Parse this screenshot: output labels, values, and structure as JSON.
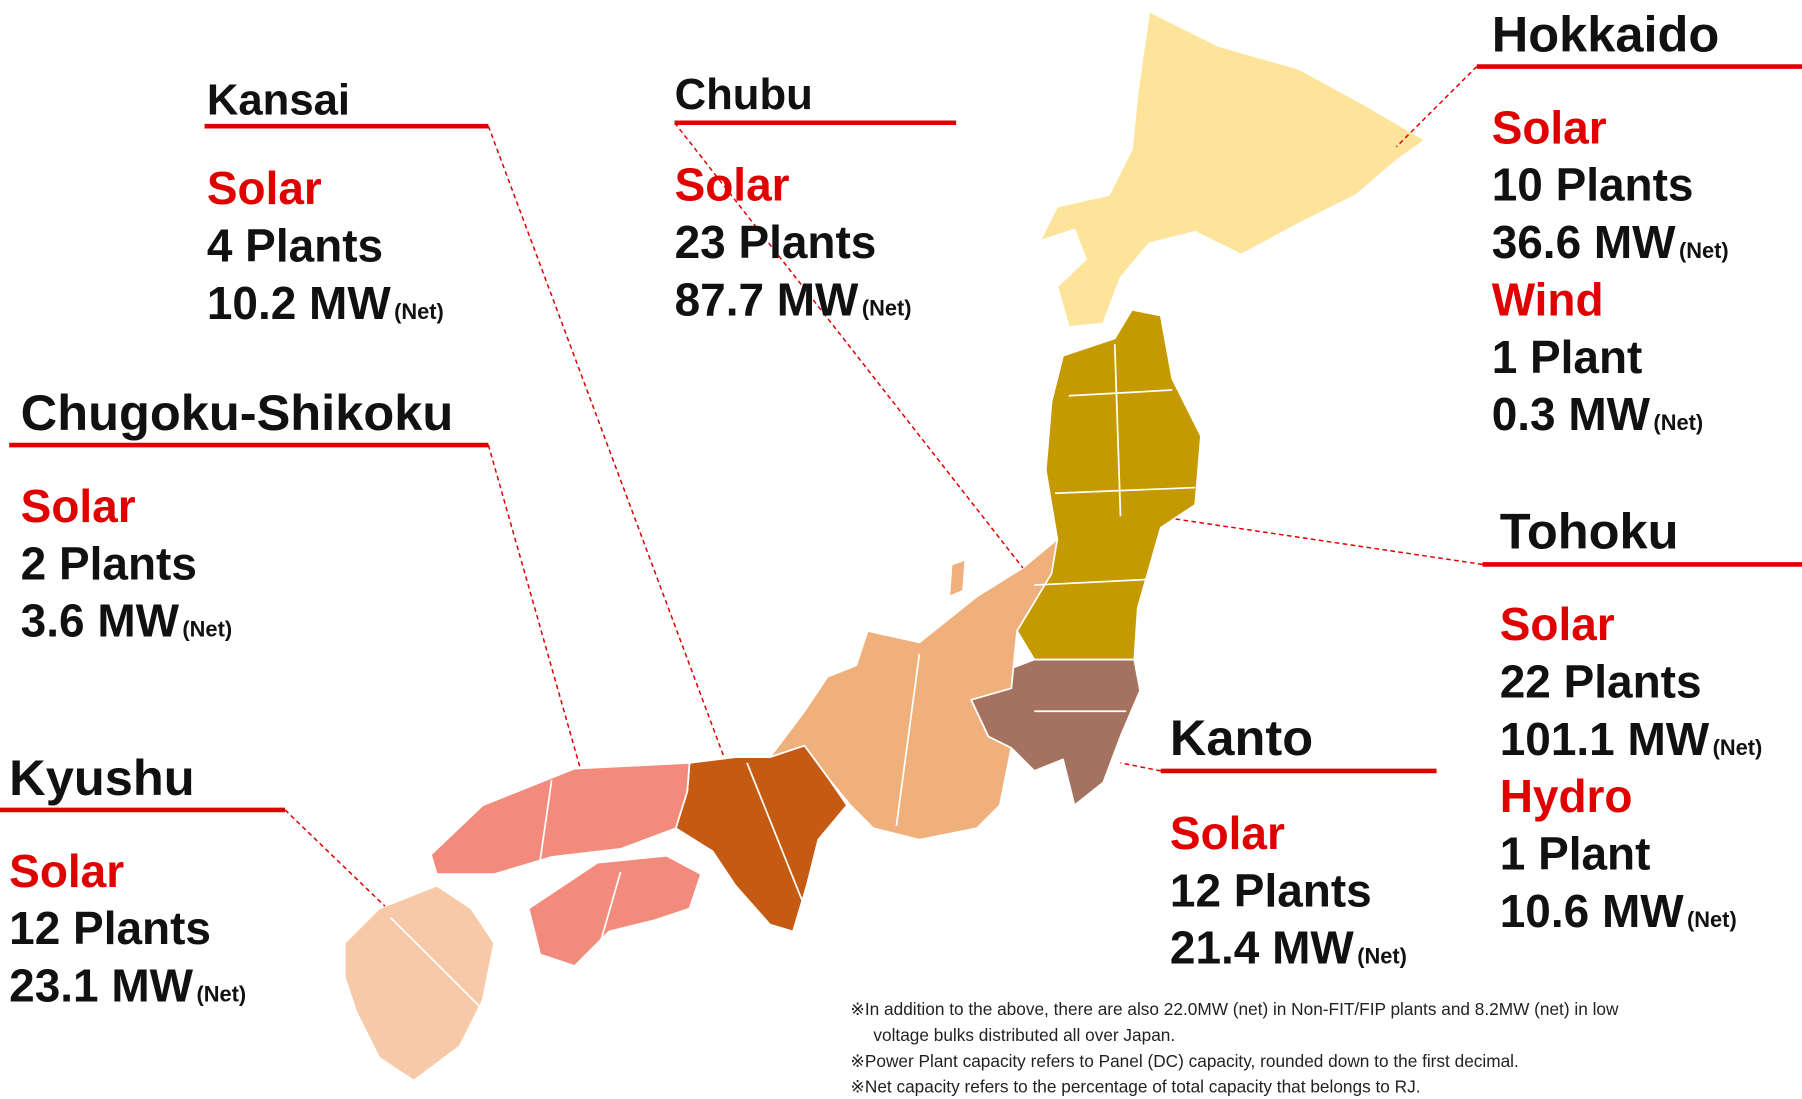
{
  "net_label": "(Net)",
  "regions": [
    {
      "name": "Kansai",
      "entries": [
        {
          "type": "Solar",
          "plants": "4 Plants",
          "capacity": "10.2 MW"
        }
      ]
    },
    {
      "name": "Chubu",
      "entries": [
        {
          "type": "Solar",
          "plants": "23 Plants",
          "capacity": "87.7 MW"
        }
      ]
    },
    {
      "name": "Chugoku-Shikoku",
      "entries": [
        {
          "type": "Solar",
          "plants": "2 Plants",
          "capacity": "3.6 MW"
        }
      ]
    },
    {
      "name": "Kyushu",
      "entries": [
        {
          "type": "Solar",
          "plants": "12 Plants",
          "capacity": "23.1 MW"
        }
      ]
    },
    {
      "name": "Hokkaido",
      "entries": [
        {
          "type": "Solar",
          "plants": "10 Plants",
          "capacity": "36.6 MW"
        },
        {
          "type": "Wind",
          "plants": "1 Plant",
          "capacity": "0.3 MW"
        }
      ]
    },
    {
      "name": "Tohoku",
      "entries": [
        {
          "type": "Solar",
          "plants": "22 Plants",
          "capacity": "101.1 MW"
        },
        {
          "type": "Hydro",
          "plants": "1 Plant",
          "capacity": "10.6 MW"
        }
      ]
    },
    {
      "name": "Kanto",
      "entries": [
        {
          "type": "Solar",
          "plants": "12 Plants",
          "capacity": "21.4 MW"
        }
      ]
    }
  ],
  "notes": [
    [
      "※In addition to the above, there are also 22.0MW (net) in Non-FIT/FIP plants and 8.2MW (net) in low",
      "voltage bulks distributed all over Japan."
    ],
    [
      "※Power Plant capacity refers to Panel (DC) capacity, rounded down to the first decimal."
    ],
    [
      "※Net capacity refers to the percentage of total capacity that belongs to RJ."
    ]
  ]
}
